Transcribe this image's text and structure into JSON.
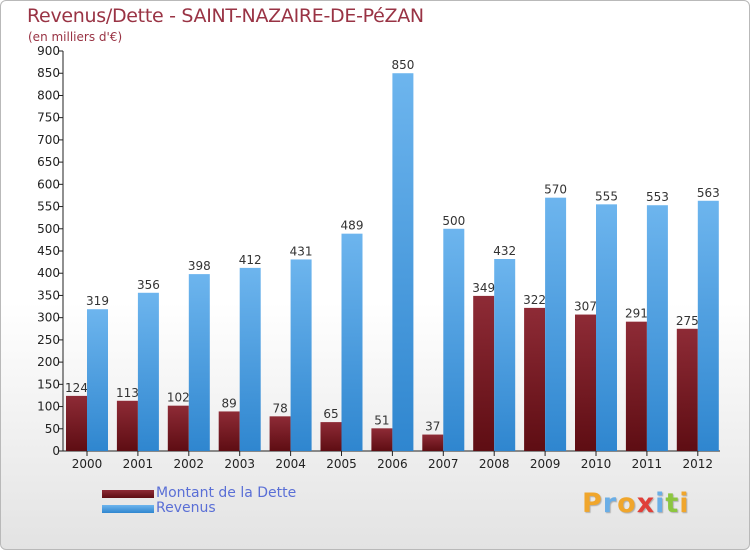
{
  "title": "Revenus/Dette - SAINT-NAZAIRE-DE-PéZAN",
  "subtitle": "(en milliers d'€)",
  "colors": {
    "dette_top": "#8e2b36",
    "dette_bottom": "#5e0d13",
    "revenus_top": "#6db5ee",
    "revenus_bottom": "#2f86cf",
    "title": "#993344",
    "legend_text": "#5a6fd6"
  },
  "chart_data": {
    "type": "bar",
    "categories": [
      "2000",
      "2001",
      "2002",
      "2003",
      "2004",
      "2005",
      "2006",
      "2007",
      "2008",
      "2009",
      "2010",
      "2011",
      "2012"
    ],
    "series": [
      {
        "name": "Montant de la Dette",
        "values": [
          124,
          113,
          102,
          89,
          78,
          65,
          51,
          37,
          349,
          322,
          307,
          291,
          275
        ]
      },
      {
        "name": "Revenus",
        "values": [
          319,
          356,
          398,
          412,
          431,
          489,
          850,
          500,
          432,
          570,
          555,
          553,
          563
        ]
      }
    ],
    "ylim": [
      0,
      900
    ],
    "yticks": [
      0,
      50,
      100,
      150,
      200,
      250,
      300,
      350,
      400,
      450,
      500,
      550,
      600,
      650,
      700,
      750,
      800,
      850,
      900
    ],
    "xlabel": "",
    "ylabel": "",
    "title": "Revenus/Dette - SAINT-NAZAIRE-DE-PéZAN",
    "legend_position": "bottom-left",
    "grid": false
  },
  "legend": [
    {
      "label": "Montant de la Dette"
    },
    {
      "label": "Revenus"
    }
  ],
  "logo": {
    "text": "Proxiti",
    "letters": [
      {
        "ch": "P",
        "color": "#f0a62c"
      },
      {
        "ch": "r",
        "color": "#6aaee6"
      },
      {
        "ch": "o",
        "color": "#f0a62c"
      },
      {
        "ch": "x",
        "color": "#e0403a"
      },
      {
        "ch": "i",
        "color": "#6aaee6"
      },
      {
        "ch": "t",
        "color": "#8cc63f"
      },
      {
        "ch": "i",
        "color": "#f0a62c"
      }
    ]
  }
}
